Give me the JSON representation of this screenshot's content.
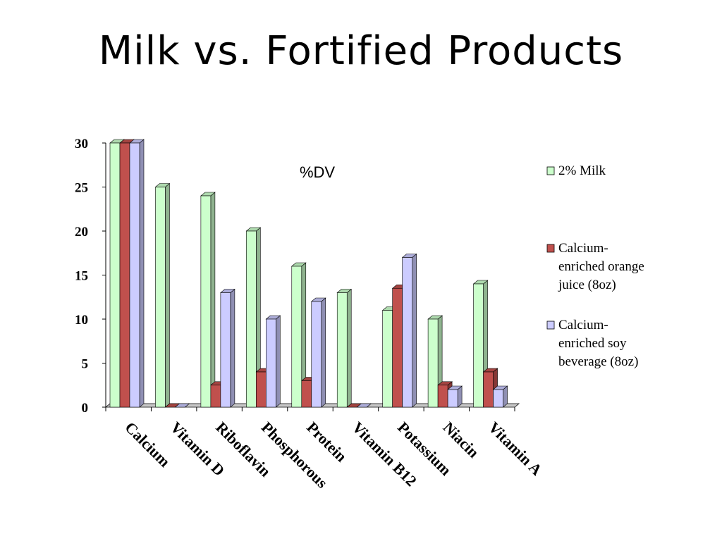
{
  "slide": {
    "title": "Milk vs. Fortified Products"
  },
  "chart_data": {
    "type": "bar",
    "title": "%DV",
    "xlabel": "",
    "ylabel": "",
    "ylim": [
      0,
      30
    ],
    "yticks": [
      "0",
      "5",
      "10",
      "15",
      "20",
      "25",
      "30"
    ],
    "categories": [
      "Calcium",
      "Vitamin D",
      "Riboflavin",
      "Phosphorous",
      "Protein",
      "Vitamin B12",
      "Potassium",
      "Niacin",
      "Vitamin A"
    ],
    "series": [
      {
        "name": "2% Milk",
        "color": "#ccffcc",
        "values": [
          30,
          25,
          24,
          20,
          16,
          13,
          11,
          10,
          14
        ]
      },
      {
        "name": "Calcium-enriched orange juice (8oz)",
        "color": "#c0504d",
        "values": [
          30,
          0,
          2.5,
          4,
          3,
          0,
          13.5,
          2.5,
          4
        ]
      },
      {
        "name": "Calcium-enriched soy beverage (8oz)",
        "color": "#ccccff",
        "values": [
          30,
          0,
          13,
          10,
          12,
          0,
          17,
          2,
          2
        ]
      }
    ],
    "legend": {
      "position": "right",
      "entries": [
        {
          "lines": [
            "2% Milk"
          ]
        },
        {
          "lines": [
            "Calcium-",
            "enriched orange",
            "juice (8oz)"
          ]
        },
        {
          "lines": [
            "Calcium-",
            "enriched soy",
            "beverage (8oz)"
          ]
        }
      ]
    },
    "grid": false,
    "style": "3d-clustered-column"
  }
}
